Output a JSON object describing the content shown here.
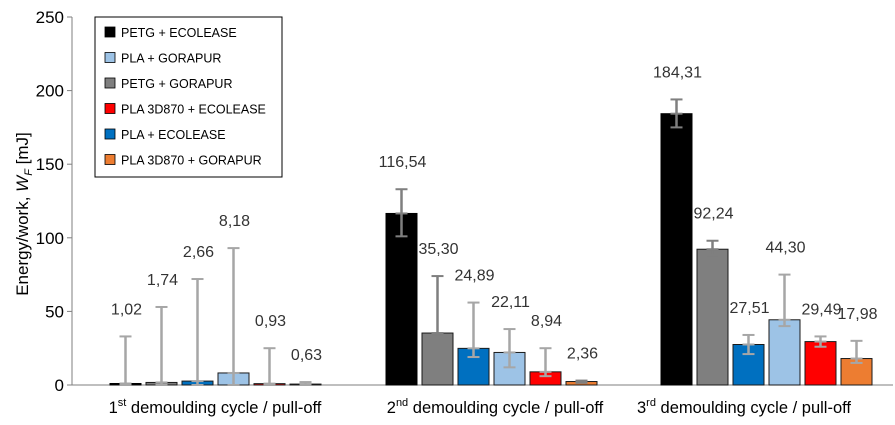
{
  "chart_data": {
    "type": "bar",
    "ylabel": "Energy/work, ",
    "ylabel_symbol": "W",
    "ylabel_subscript": "F",
    "ylabel_unit": " [mJ]",
    "ylim": [
      0,
      250
    ],
    "yticks": [
      "0",
      "50",
      "100",
      "150",
      "200",
      "250"
    ],
    "grid": false,
    "legend_position": "top-left",
    "categories": [
      {
        "num": "1",
        "sup": "st",
        "rest": " demoulding cycle / pull-off"
      },
      {
        "num": "2",
        "sup": "nd",
        "rest": " demoulding cycle / pull-off"
      },
      {
        "num": "3",
        "sup": "rd",
        "rest": " demoulding cycle / pull-off"
      }
    ],
    "series_legend": [
      {
        "name": "PETG + ECOLEASE",
        "color": "#000000"
      },
      {
        "name": "PLA + GORAPUR",
        "color": "#9dc3e6"
      },
      {
        "name": "PETG + GORAPUR",
        "color": "#7f7f7f"
      },
      {
        "name": "PLA 3D870 + ECOLEASE",
        "color": "#ff0000"
      },
      {
        "name": "PLA + ECOLEASE",
        "color": "#0070c0"
      },
      {
        "name": "PLA 3D870 + GORAPUR",
        "color": "#ed7d31"
      }
    ],
    "bar_order": [
      "PETG + ECOLEASE",
      "PETG + GORAPUR",
      "PLA + ECOLEASE",
      "PLA + GORAPUR",
      "PLA 3D870 + ECOLEASE",
      "PLA 3D870 + GORAPUR"
    ],
    "groups": [
      {
        "values": [
          1.02,
          1.74,
          2.66,
          8.18,
          0.93,
          0.63
        ],
        "labels": [
          "1,02",
          "1,74",
          "2,66",
          "8,18",
          "0,93",
          "0,63"
        ],
        "err_low": [
          0,
          0,
          0,
          0,
          0,
          0
        ],
        "err_high": [
          33,
          53,
          72,
          93,
          25,
          2
        ],
        "err_color": [
          "#a6a6a6",
          "#a6a6a6",
          "#a6a6a6",
          "#a6a6a6",
          "#a6a6a6",
          "#a6a6a6"
        ]
      },
      {
        "values": [
          116.54,
          35.3,
          24.89,
          22.11,
          8.94,
          2.36
        ],
        "labels": [
          "116,54",
          "35,30",
          "24,89",
          "22,11",
          "8,94",
          "2,36"
        ],
        "err_low": [
          101,
          34,
          19,
          12,
          6,
          1.5
        ],
        "err_high": [
          133,
          74,
          56,
          38,
          25,
          3
        ],
        "err_color": [
          "#7f7f7f",
          "#7f7f7f",
          "#a6a6a6",
          "#a6a6a6",
          "#a6a6a6",
          "#7f7f7f"
        ]
      },
      {
        "values": [
          184.31,
          92.24,
          27.51,
          44.3,
          29.49,
          17.98
        ],
        "labels": [
          "184,31",
          "92,24",
          "27,51",
          "44,30",
          "29,49",
          "17,98"
        ],
        "err_low": [
          175,
          88,
          21,
          40,
          26,
          15
        ],
        "err_high": [
          194,
          98,
          34,
          75,
          33,
          30
        ],
        "err_color": [
          "#7f7f7f",
          "#7f7f7f",
          "#a6a6a6",
          "#a6a6a6",
          "#a6a6a6",
          "#a6a6a6"
        ]
      }
    ]
  }
}
